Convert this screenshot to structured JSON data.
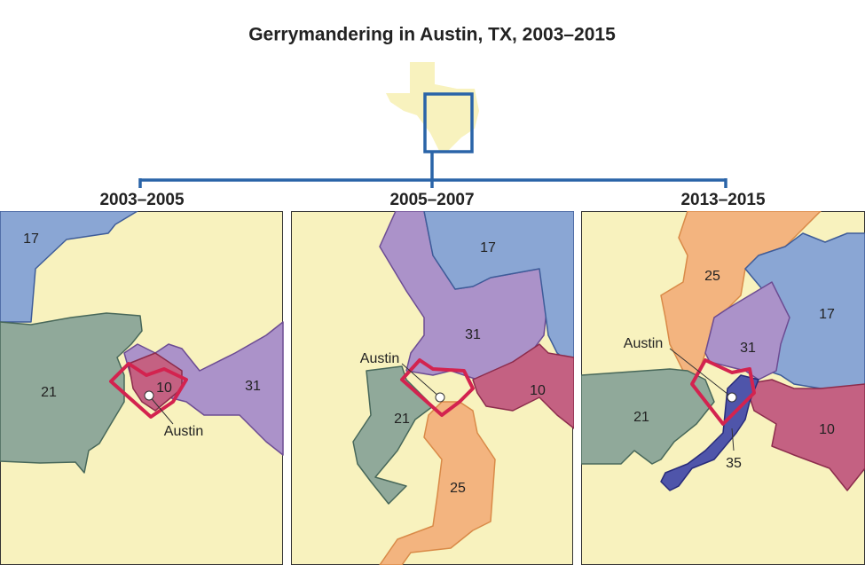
{
  "title": "Gerrymandering in Austin, TX, 2003–2015",
  "panels": [
    {
      "label": "2003–2005",
      "districts": [
        "17",
        "21",
        "10",
        "31"
      ],
      "city": "Austin"
    },
    {
      "label": "2005–2007",
      "districts": [
        "17",
        "31",
        "10",
        "21",
        "25"
      ],
      "city": "Austin"
    },
    {
      "label": "2013–2015",
      "districts": [
        "25",
        "17",
        "31",
        "10",
        "21",
        "35"
      ],
      "city": "Austin"
    }
  ]
}
